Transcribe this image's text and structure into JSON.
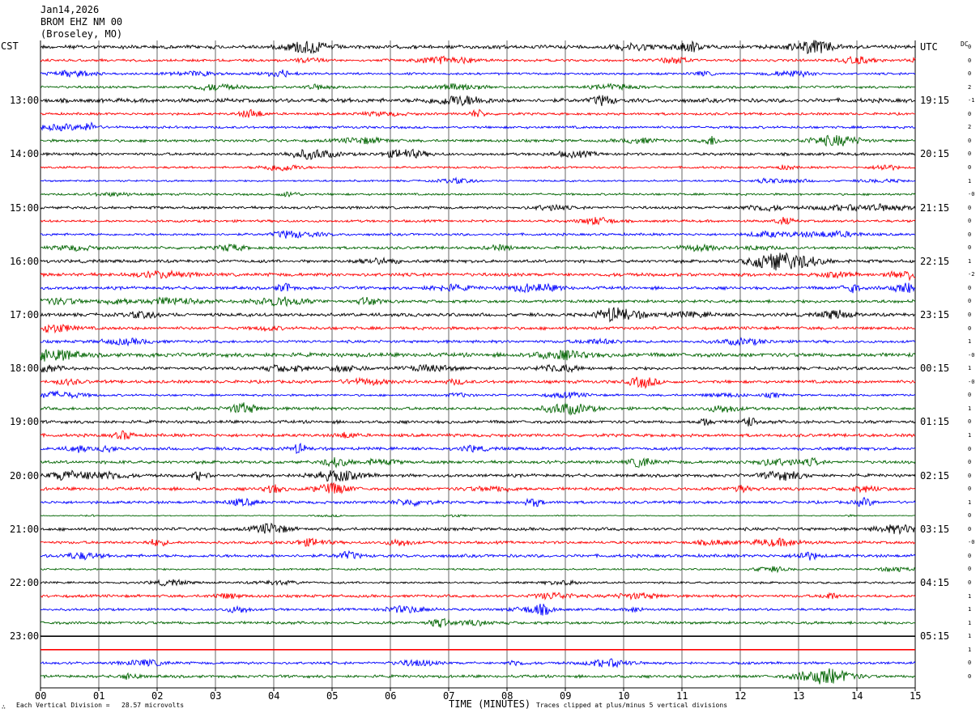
{
  "header": {
    "date": "Jan14,2026",
    "station": "BROM EHZ NM 00",
    "location": "(Broseley, MO)"
  },
  "left_tz": "CST",
  "right_tz": "UTC",
  "dc_label": "DC",
  "footer": {
    "mark": "∴",
    "vertical_division": "Each Vertical Division =   28.57 microvolts",
    "xlabel": "TIME (MINUTES)",
    "clip_note": "Traces clipped at plus/minus 5 vertical divisions"
  },
  "colors": {
    "trace_cycle": [
      "#000000",
      "#ff0000",
      "#0000ff",
      "#006400"
    ],
    "grid": "#000000"
  },
  "chart_data": {
    "type": "line",
    "title": "BROM EHZ NM 00 (Broseley, MO)",
    "xlabel": "TIME (MINUTES)",
    "xlim": [
      0,
      15
    ],
    "x_ticks": [
      "00",
      "01",
      "02",
      "03",
      "04",
      "05",
      "06",
      "07",
      "08",
      "09",
      "10",
      "11",
      "12",
      "13",
      "14",
      "15"
    ],
    "trace_count": 48,
    "minutes_per_trace": 15,
    "left_hour_labels": [
      {
        "trace": 4,
        "label": "13:00"
      },
      {
        "trace": 8,
        "label": "14:00"
      },
      {
        "trace": 12,
        "label": "15:00"
      },
      {
        "trace": 16,
        "label": "16:00"
      },
      {
        "trace": 20,
        "label": "17:00"
      },
      {
        "trace": 24,
        "label": "18:00"
      },
      {
        "trace": 28,
        "label": "19:00"
      },
      {
        "trace": 32,
        "label": "20:00"
      },
      {
        "trace": 36,
        "label": "21:00"
      },
      {
        "trace": 40,
        "label": "22:00"
      },
      {
        "trace": 44,
        "label": "23:00"
      }
    ],
    "right_hour_labels": [
      {
        "trace": 0,
        "label": "UTC"
      },
      {
        "trace": 4,
        "label": "19:15"
      },
      {
        "trace": 8,
        "label": "20:15"
      },
      {
        "trace": 12,
        "label": "21:15"
      },
      {
        "trace": 16,
        "label": "22:15"
      },
      {
        "trace": 20,
        "label": "23:15"
      },
      {
        "trace": 24,
        "label": "00:15"
      },
      {
        "trace": 28,
        "label": "01:15"
      },
      {
        "trace": 32,
        "label": "02:15"
      },
      {
        "trace": 36,
        "label": "03:15"
      },
      {
        "trace": 40,
        "label": "04:15"
      },
      {
        "trace": 44,
        "label": "05:15"
      }
    ],
    "dc_offsets": [
      "0",
      "0",
      "0",
      "2",
      "-1",
      "0",
      "2",
      "0",
      "0",
      "0",
      "1",
      "-0",
      "0",
      "0",
      "0",
      "0",
      "1",
      "-2",
      "0",
      "0",
      "0",
      "0",
      "1",
      "-0",
      "1",
      "-0",
      "0",
      "1",
      "0",
      "1",
      "0",
      "0",
      "0",
      "0",
      "1",
      "0",
      "0",
      "-0",
      "0",
      "0",
      "0",
      "1",
      "1",
      "1",
      "1",
      "1",
      "0",
      "0"
    ],
    "trace_activity": [
      1.2,
      0.8,
      0.7,
      0.8,
      1.3,
      0.8,
      0.8,
      0.9,
      0.9,
      0.7,
      0.6,
      0.7,
      0.9,
      0.8,
      0.8,
      0.9,
      1.0,
      1.1,
      1.0,
      1.0,
      1.1,
      1.0,
      0.9,
      1.3,
      1.0,
      1.0,
      0.7,
      1.0,
      1.0,
      1.0,
      1.0,
      1.0,
      1.0,
      1.0,
      0.9,
      0.3,
      1.0,
      0.9,
      1.0,
      0.6,
      0.7,
      0.9,
      0.8,
      0.9,
      0.0,
      0.0,
      0.8,
      0.9
    ]
  }
}
